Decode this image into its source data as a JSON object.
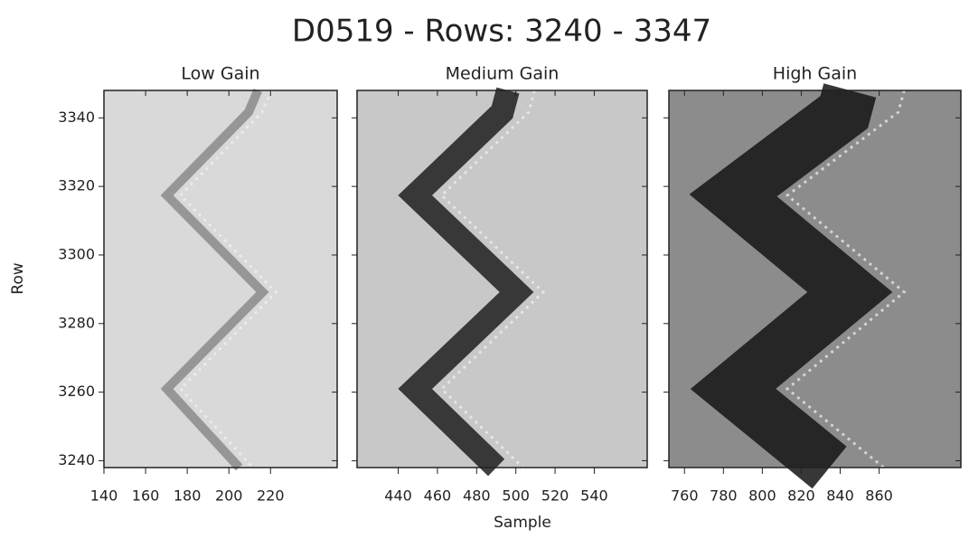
{
  "chart_data": {
    "type": "image",
    "title": "D0519 - Rows: 3240 - 3347",
    "xlabel": "Sample",
    "ylabel": "Row",
    "ylim": [
      3238,
      3348
    ],
    "yticks": [
      3240,
      3260,
      3280,
      3300,
      3320,
      3340
    ],
    "panels": [
      {
        "subtitle": "Low Gain",
        "xlim": [
          140,
          252
        ],
        "xticks": [
          140,
          160,
          180,
          200,
          220
        ],
        "background": "#d9d9d9",
        "band_color": "#8a8a8a"
      },
      {
        "subtitle": "Medium Gain",
        "xlim": [
          419,
          567
        ],
        "xticks": [
          440,
          460,
          480,
          500,
          520,
          540
        ],
        "background": "#c8c8c8",
        "band_color": "#1e1e1e"
      },
      {
        "subtitle": "High Gain",
        "xlim": [
          752,
          902
        ],
        "xticks": [
          760,
          780,
          800,
          820,
          840,
          860
        ],
        "background": "#8c8c8c",
        "band_color": "#141414"
      }
    ]
  }
}
